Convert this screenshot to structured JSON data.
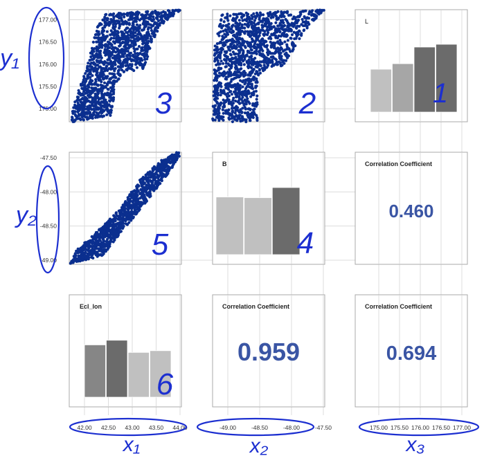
{
  "colors": {
    "scatter_point": "#0b2f8f",
    "annotation_ink": "#1c2fd0",
    "corr_text": "#3a55a4",
    "panel_border": "#a8a8a8",
    "grid": "#dcdcdc",
    "bar_light": "#c0c0c0",
    "bar_mid": "#a6a6a6",
    "bar_dark": "#6b6b6b",
    "bar_darker": "#868686"
  },
  "chart_data": [
    {
      "type": "scatter",
      "panel": "row1-col1",
      "x_variable": "Ecl_lon",
      "y_variable": "L",
      "xlim": [
        42.0,
        44.0
      ],
      "ylim": [
        174.8,
        177.1
      ],
      "grid": true,
      "shape": "parallelogram band with a notch on the right side",
      "outline": [
        [
          42.05,
          174.85
        ],
        [
          43.0,
          174.9
        ],
        [
          43.0,
          175.85
        ],
        [
          43.9,
          175.85
        ],
        [
          44.1,
          177.1
        ],
        [
          43.6,
          177.1
        ],
        [
          42.9,
          177.1
        ]
      ],
      "annotation": "3"
    },
    {
      "type": "scatter",
      "panel": "row1-col2",
      "x_variable": "B",
      "y_variable": "L",
      "xlim": [
        -49.0,
        -47.5
      ],
      "ylim": [
        174.8,
        177.1
      ],
      "grid": true,
      "shape": "L-shaped point cloud",
      "annotation": "2"
    },
    {
      "type": "bar",
      "panel": "row1-col3",
      "title": "L",
      "values": [
        0.62,
        0.7,
        0.94,
        0.98
      ],
      "bar_colors": [
        "#c0c0c0",
        "#a6a6a6",
        "#6b6b6b",
        "#6b6b6b"
      ],
      "annotation": "1"
    },
    {
      "type": "scatter",
      "panel": "row2-col1",
      "x_variable": "Ecl_lon",
      "y_variable": "B",
      "xlim": [
        42.0,
        44.0
      ],
      "ylim": [
        -49.0,
        -47.5
      ],
      "grid": true,
      "shape": "rising diagonal band",
      "annotation": "5"
    },
    {
      "type": "bar",
      "panel": "row2-col2",
      "title": "B",
      "values": [
        0.85,
        0.84,
        0.99
      ],
      "bar_colors": [
        "#c0c0c0",
        "#c0c0c0",
        "#6b6b6b"
      ],
      "annotation": "4"
    },
    {
      "type": "table",
      "panel": "row2-col3",
      "title": "Correlation Coefficient",
      "value": "0.460"
    },
    {
      "type": "bar",
      "panel": "row3-col1",
      "title": "Ecl_lon",
      "values": [
        0.9,
        0.98,
        0.77,
        0.8
      ],
      "bar_colors": [
        "#868686",
        "#6b6b6b",
        "#c0c0c0",
        "#c0c0c0"
      ],
      "annotation": "6"
    },
    {
      "type": "table",
      "panel": "row3-col2",
      "title": "Correlation Coefficient",
      "value": "0.959"
    },
    {
      "type": "table",
      "panel": "row3-col3",
      "title": "Correlation Coefficient",
      "value": "0.694"
    }
  ],
  "axes": {
    "y1_ticks": [
      "177.00",
      "176.50",
      "176.00",
      "175.50",
      "175.00"
    ],
    "y1_values": [
      177.0,
      176.5,
      176.0,
      175.5,
      175.0
    ],
    "y2_ticks": [
      "-47.50",
      "-48.00",
      "-48.50",
      "-49.00"
    ],
    "y2_values": [
      -47.5,
      -48.0,
      -48.5,
      -49.0
    ],
    "x1_ticks": [
      "42.00",
      "42.50",
      "43.00",
      "43.50",
      "44.00"
    ],
    "x1_values": [
      42.0,
      42.5,
      43.0,
      43.5,
      44.0
    ],
    "x2_ticks": [
      "-49.00",
      "-48.50",
      "-48.00",
      "-47.50"
    ],
    "x2_values": [
      -49.0,
      -48.5,
      -48.0,
      -47.5
    ],
    "x3_ticks": [
      "175.00",
      "175.50",
      "176.00",
      "176.50",
      "177.00"
    ],
    "x3_values": [
      175.0,
      175.5,
      176.0,
      176.5,
      177.0
    ]
  },
  "annotations": {
    "y1": "y₁",
    "y2": "y₂",
    "x1": "x₁",
    "x2": "x₂",
    "x3": "x₃",
    "n1": "1",
    "n2": "2",
    "n3": "3",
    "n4": "4",
    "n5": "5",
    "n6": "6"
  },
  "labels": {
    "panel_L": "L",
    "panel_B": "B",
    "panel_Ecl": "Ecl_lon",
    "corr_title": "Correlation Coefficient",
    "corr_23": "0.460",
    "corr_32": "0.959",
    "corr_33": "0.694"
  }
}
